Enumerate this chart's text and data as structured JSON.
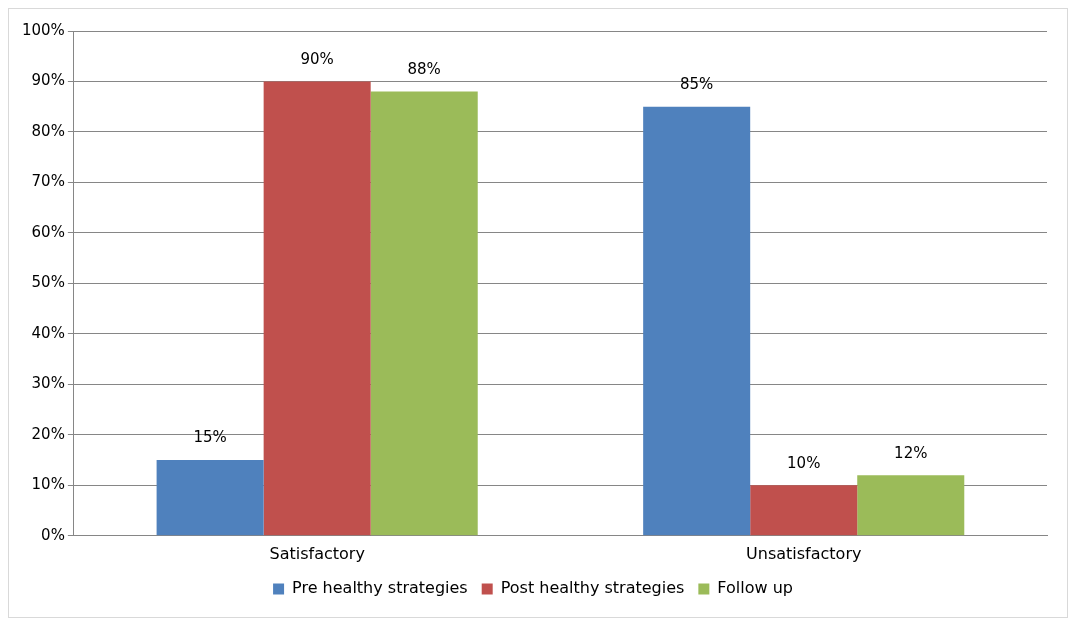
{
  "chart_data": {
    "type": "bar",
    "categories": [
      "Satisfactory",
      "Unsatisfactory"
    ],
    "series": [
      {
        "name": "Pre healthy strategies",
        "color": "#4f81bd",
        "values": [
          15,
          85
        ],
        "value_labels": [
          "15%",
          "85%"
        ]
      },
      {
        "name": "Post healthy strategies",
        "color": "#c0504d",
        "values": [
          90,
          10
        ],
        "value_labels": [
          "90%",
          "10%"
        ]
      },
      {
        "name": "Follow up",
        "color": "#9bbb59",
        "values": [
          88,
          12
        ],
        "value_labels": [
          "88%",
          "12%"
        ]
      }
    ],
    "ylim": [
      0,
      100
    ],
    "yticks": [
      {
        "value": 0,
        "label": "0%"
      },
      {
        "value": 10,
        "label": "10%"
      },
      {
        "value": 20,
        "label": "20%"
      },
      {
        "value": 30,
        "label": "30%"
      },
      {
        "value": 40,
        "label": "40%"
      },
      {
        "value": 50,
        "label": "50%"
      },
      {
        "value": 60,
        "label": "60%"
      },
      {
        "value": 70,
        "label": "70%"
      },
      {
        "value": 80,
        "label": "80%"
      },
      {
        "value": 90,
        "label": "90%"
      },
      {
        "value": 100,
        "label": "100%"
      }
    ],
    "grid": "y",
    "legend": "bottom"
  }
}
